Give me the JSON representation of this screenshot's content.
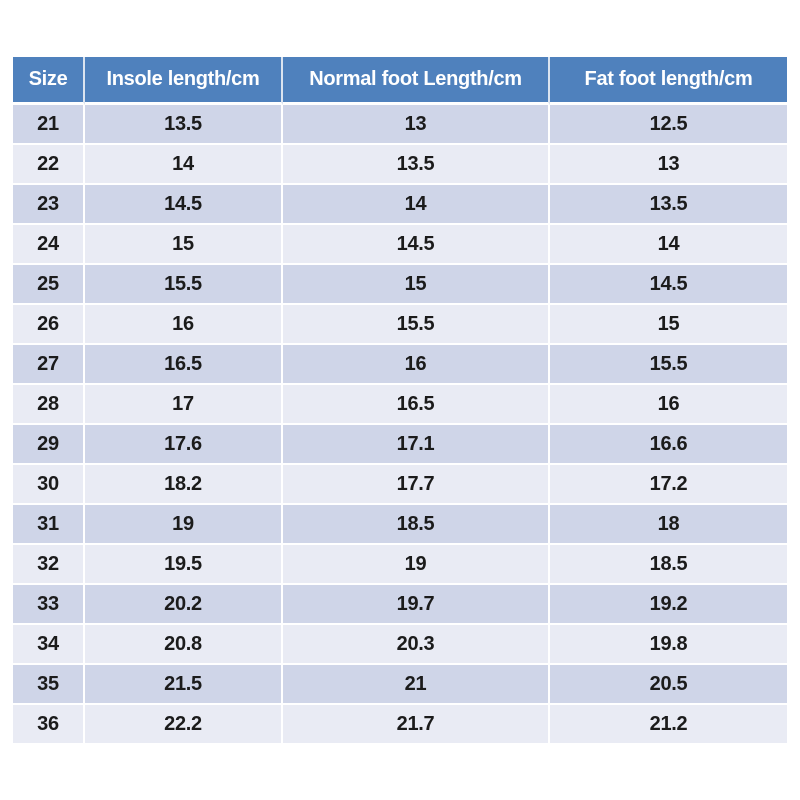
{
  "colors": {
    "header_bg": "#4f81bd",
    "header_text": "#ffffff",
    "band_odd": "#cfd5e8",
    "band_even": "#e9ebf4",
    "body_text": "#1b1b1b",
    "page_background": "#ffffff"
  },
  "chart_data": {
    "type": "table",
    "title": "",
    "columns": [
      "Size",
      "Insole length/cm",
      "Normal foot Length/cm",
      "Fat foot length/cm"
    ],
    "rows": [
      [
        "21",
        "13.5",
        "13",
        "12.5"
      ],
      [
        "22",
        "14",
        "13.5",
        "13"
      ],
      [
        "23",
        "14.5",
        "14",
        "13.5"
      ],
      [
        "24",
        "15",
        "14.5",
        "14"
      ],
      [
        "25",
        "15.5",
        "15",
        "14.5"
      ],
      [
        "26",
        "16",
        "15.5",
        "15"
      ],
      [
        "27",
        "16.5",
        "16",
        "15.5"
      ],
      [
        "28",
        "17",
        "16.5",
        "16"
      ],
      [
        "29",
        "17.6",
        "17.1",
        "16.6"
      ],
      [
        "30",
        "18.2",
        "17.7",
        "17.2"
      ],
      [
        "31",
        "19",
        "18.5",
        "18"
      ],
      [
        "32",
        "19.5",
        "19",
        "18.5"
      ],
      [
        "33",
        "20.2",
        "19.7",
        "19.2"
      ],
      [
        "34",
        "20.8",
        "20.3",
        "19.8"
      ],
      [
        "35",
        "21.5",
        "21",
        "20.5"
      ],
      [
        "36",
        "22.2",
        "21.7",
        "21.2"
      ]
    ]
  }
}
